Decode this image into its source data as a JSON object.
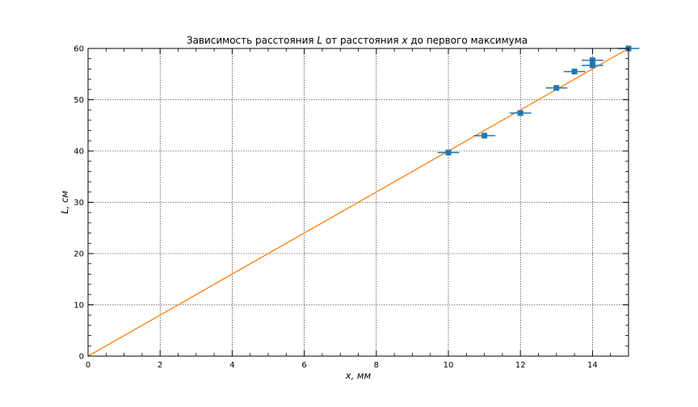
{
  "chart_data": {
    "type": "scatter",
    "title": "Зависимость расстояния L от расстояния x до первого максимума",
    "title_parts": {
      "pre": "Зависимость расстояния ",
      "var1": "L",
      "mid": " от расстояния ",
      "var2": "x",
      "post": " до первого максимума"
    },
    "xlabel": "x, мм",
    "ylabel": "L, см",
    "xlim": [
      0,
      15
    ],
    "ylim": [
      0,
      60
    ],
    "xticks": [
      0,
      2,
      4,
      6,
      8,
      10,
      12,
      14
    ],
    "yticks": [
      0,
      10,
      20,
      30,
      40,
      50,
      60
    ],
    "x_minor_step": 0.5,
    "y_minor_step": 2,
    "grid": true,
    "series": [
      {
        "type": "errorbar",
        "color": "#1f77b4",
        "points": [
          {
            "x": 10.0,
            "y": 39.7,
            "xerr": 0.3,
            "yerr": 0.5
          },
          {
            "x": 11.0,
            "y": 43.0,
            "xerr": 0.3,
            "yerr": 0.5
          },
          {
            "x": 12.0,
            "y": 47.4,
            "xerr": 0.3,
            "yerr": 0.5
          },
          {
            "x": 13.0,
            "y": 52.3,
            "xerr": 0.3,
            "yerr": 0.5
          },
          {
            "x": 13.5,
            "y": 55.5,
            "xerr": 0.3,
            "yerr": 0.5
          },
          {
            "x": 14.0,
            "y": 56.7,
            "xerr": 0.3,
            "yerr": 0.5
          },
          {
            "x": 14.0,
            "y": 57.7,
            "xerr": 0.3,
            "yerr": 0.5
          },
          {
            "x": 15.0,
            "y": 60.0,
            "xerr": 0.3,
            "yerr": 0.5
          }
        ]
      },
      {
        "type": "line",
        "color": "#ff7f0e",
        "x": [
          0,
          15
        ],
        "y": [
          0,
          60
        ]
      }
    ]
  }
}
